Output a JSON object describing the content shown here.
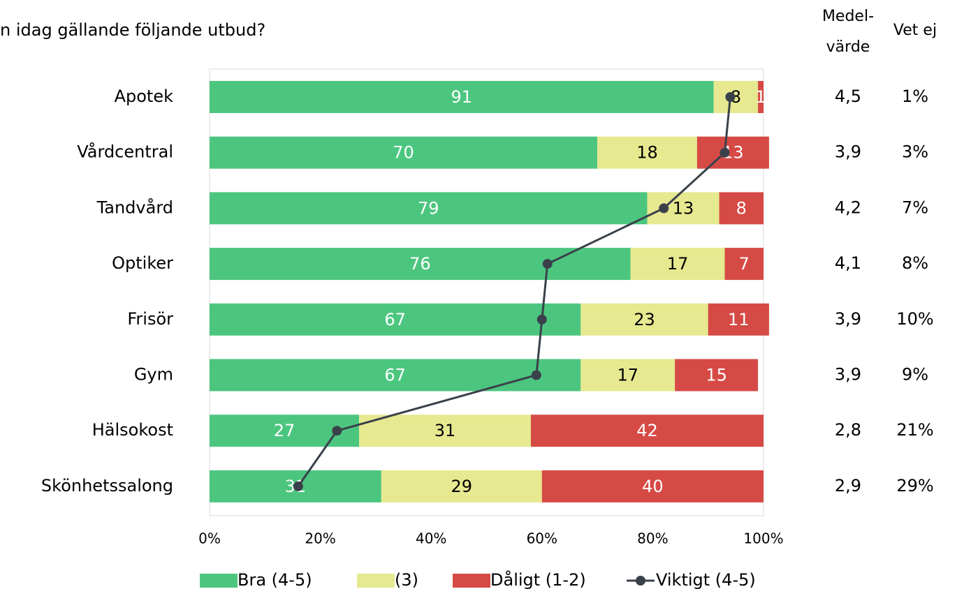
{
  "chart_data": {
    "type": "bar",
    "orientation": "horizontal",
    "stacked": true,
    "title": "n idag gällande följande utbud?",
    "categories": [
      "Apotek",
      "Vårdcentral",
      "Tandvård",
      "Optiker",
      "Frisör",
      "Gym",
      "Hälsokost",
      "Skönhetssalong"
    ],
    "series": [
      {
        "name": "Bra (4-5)",
        "color": "#4cc67f",
        "label_color": "#ffffff",
        "values": [
          91,
          70,
          79,
          76,
          67,
          67,
          27,
          31
        ]
      },
      {
        "name": "(3)",
        "color": "#e6e98f",
        "label_color": "#000000",
        "values": [
          8,
          18,
          13,
          17,
          23,
          17,
          31,
          29
        ]
      },
      {
        "name": "Dåligt (1-2)",
        "color": "#d64a45",
        "label_color": "#ffffff",
        "values": [
          1,
          13,
          8,
          7,
          11,
          15,
          42,
          40
        ]
      },
      {
        "name": "Viktigt (4-5)",
        "type": "line",
        "color": "#3a414b",
        "values": [
          94,
          93,
          82,
          61,
          60,
          59,
          23,
          16
        ]
      }
    ],
    "xlim": [
      0,
      100
    ],
    "xticks": [
      {
        "value": 0,
        "label": "0%"
      },
      {
        "value": 20,
        "label": "20%"
      },
      {
        "value": 40,
        "label": "40%"
      },
      {
        "value": 60,
        "label": "60%"
      },
      {
        "value": 80,
        "label": "80%"
      },
      {
        "value": 100,
        "label": "100%"
      }
    ],
    "legend": "bottom",
    "columns": [
      {
        "header": [
          "Medel-",
          "värde"
        ],
        "values": [
          4.5,
          3.9,
          4.2,
          4.1,
          3.9,
          3.9,
          2.8,
          2.9
        ],
        "value_labels": [
          "4,5",
          "3,9",
          "4,2",
          "4,1",
          "3,9",
          "3,9",
          "2,8",
          "2,9"
        ]
      },
      {
        "header": [
          "Vet ej"
        ],
        "values": [
          1,
          3,
          7,
          8,
          10,
          9,
          21,
          29
        ],
        "value_labels": [
          "1%",
          "3%",
          "7%",
          "8%",
          "10%",
          "9%",
          "21%",
          "29%"
        ]
      }
    ]
  }
}
